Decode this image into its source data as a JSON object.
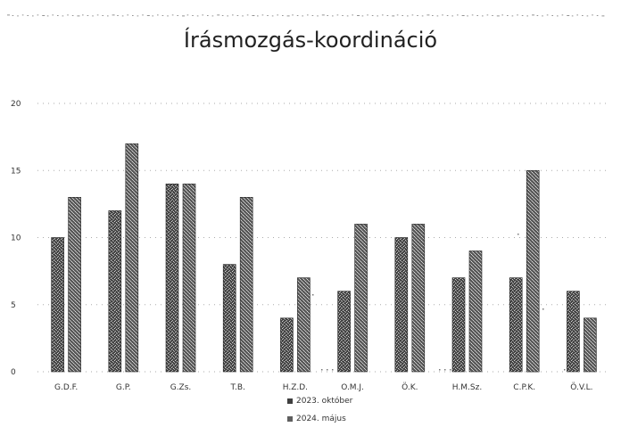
{
  "chart_data": {
    "type": "bar",
    "title": "Írásmozgás-koordináció",
    "categories": [
      "G.D.F.",
      "G.P.",
      "G.Zs.",
      "T.B.",
      "H.Z.D.",
      "O.M.J.",
      "Ö.K.",
      "H.M.Sz.",
      "C.P.K.",
      "Ö.V.L."
    ],
    "series": [
      {
        "name": "2023. október",
        "values": [
          10,
          12,
          14,
          8,
          4,
          6,
          10,
          7,
          7,
          6
        ]
      },
      {
        "name": "2024. május",
        "values": [
          13,
          17,
          14,
          13,
          7,
          11,
          11,
          9,
          15,
          4
        ]
      }
    ],
    "ylim": [
      0,
      20
    ],
    "yticks": [
      0,
      5,
      10,
      15,
      20
    ],
    "ytick_labels": [
      "0",
      "5",
      "10",
      "15",
      "20"
    ],
    "xlabel": "",
    "ylabel": "",
    "grid": true,
    "legend_position": "bottom",
    "colors": {
      "series_1": "#4f4f4f",
      "series_2": "#6a6a6a",
      "grid": "#666666",
      "text": "#222222"
    }
  }
}
